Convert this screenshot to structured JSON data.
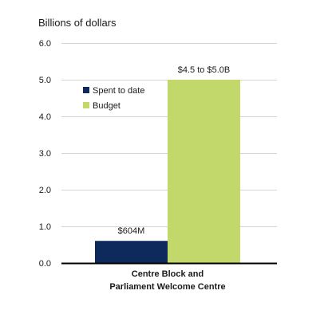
{
  "chart_data": {
    "type": "bar",
    "ylabel": "Billions of dollars",
    "ylim": [
      0,
      6
    ],
    "yticks": [
      "0.0",
      "1.0",
      "2.0",
      "3.0",
      "4.0",
      "5.0",
      "6.0"
    ],
    "grid": true,
    "legend_position": "top-left",
    "categories": [
      "Centre Block and Parliament Welcome Centre"
    ],
    "category_label_lines": [
      "Centre Block and",
      "Parliament Welcome Centre"
    ],
    "series": [
      {
        "name": "Spent to date",
        "values": [
          0.604
        ],
        "label": "$604M",
        "color": "#0e2a5c"
      },
      {
        "name": "Budget",
        "values": [
          5.0
        ],
        "label": "$4.5 to $5.0B",
        "color": "#c2d86a"
      }
    ]
  }
}
